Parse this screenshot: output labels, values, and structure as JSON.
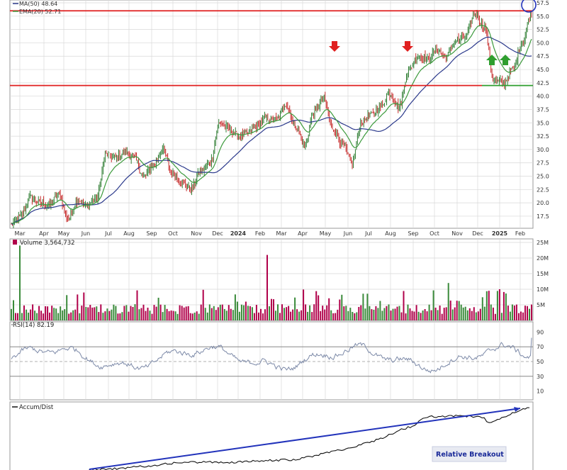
{
  "colors": {
    "panel_bg": "#ffffff",
    "grid": "#d8d8d8",
    "up": "#2e7d32",
    "down": "#c62828",
    "ma50": "#2c3a8c",
    "ema20": "#3c9a3c",
    "resistance": "#e02020",
    "support": "#2f9e2f",
    "trend": "#2233bb",
    "rsi": "#7d8aa8",
    "rsi_fill": "#8aa7b0",
    "accum": "#111111",
    "callout_bg": "#e8eaf2",
    "callout_text": "#1a2a99"
  },
  "legend": {
    "ma": "MA(50) 48.64",
    "ema": "EMA(20) 52.71"
  },
  "volume_label": "Volume 3,564,732",
  "rsi_label": "RSI(14) 82.19",
  "accum_label": "Accum/Dist",
  "callout": "Relative Breakout",
  "chart_data": [
    {
      "type": "candlestick",
      "panel": "price",
      "x_ticks": [
        "Mar",
        "Apr",
        "May",
        "Jun",
        "Jul",
        "Aug",
        "Sep",
        "Oct",
        "Nov",
        "Dec",
        "2024",
        "Feb",
        "Mar",
        "Apr",
        "May",
        "Jun",
        "Jul",
        "Aug",
        "Sep",
        "Oct",
        "Nov",
        "Dec",
        "2025",
        "Feb"
      ],
      "y_ticks": [
        17.5,
        20.0,
        22.5,
        25.0,
        27.5,
        30.0,
        32.5,
        35.0,
        37.5,
        40.0,
        42.5,
        45.0,
        47.5,
        50.0,
        52.5,
        55.0,
        57.5
      ],
      "ylim": [
        15.5,
        57.5
      ],
      "close_anchors": [
        16.0,
        17.5,
        21.0,
        20.0,
        19.5,
        21.5,
        17.0,
        20.5,
        19.5,
        21.0,
        29.0,
        28.5,
        29.5,
        28.5,
        25.0,
        27.0,
        30.0,
        25.5,
        24.0,
        22.5,
        26.0,
        27.5,
        35.0,
        34.0,
        32.5,
        33.0,
        34.5,
        36.0,
        35.5,
        38.5,
        34.5,
        31.0,
        37.0,
        39.5,
        34.0,
        31.0,
        27.5,
        35.0,
        36.5,
        38.0,
        40.5,
        38.0,
        45.0,
        47.5,
        47.0,
        48.5,
        47.5,
        50.5,
        51.0,
        55.5,
        53.0,
        43.0,
        42.5,
        45.0,
        50.0,
        55.5
      ],
      "series": [
        {
          "name": "MA(50)",
          "last": 48.64
        },
        {
          "name": "EMA(20)",
          "last": 52.71
        }
      ],
      "resistance_levels": [
        56.0,
        42.0
      ],
      "support_level": 42.0,
      "down_arrows_near": [
        "May 2024",
        "Aug 2024"
      ],
      "up_arrows_near": [
        "Dec 2024",
        "Dec 2024"
      ]
    },
    {
      "type": "bar",
      "panel": "volume",
      "y_ticks": [
        "5M",
        "10M",
        "15M",
        "20M",
        "25M"
      ],
      "ylim": [
        0,
        25
      ],
      "last": 3.56
    },
    {
      "type": "line",
      "panel": "rsi",
      "y_ticks": [
        10,
        30,
        50,
        70,
        90
      ],
      "ylim": [
        0,
        100
      ],
      "reference_lines": [
        30,
        50,
        70
      ],
      "last": 82.19
    },
    {
      "type": "line",
      "panel": "accum_dist",
      "trend_line": true
    }
  ]
}
